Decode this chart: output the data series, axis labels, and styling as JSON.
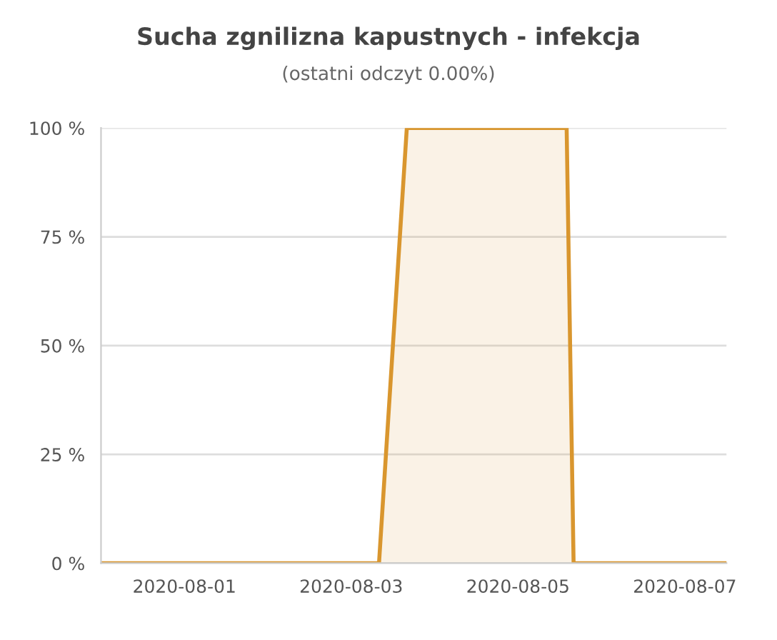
{
  "chart_data": {
    "type": "area",
    "title": "Sucha zgnilizna kapustnych - infekcja",
    "subtitle": "(ostatni odczyt 0.00%)",
    "x": [
      "2020-07-31T00:00",
      "2020-08-03T08:00",
      "2020-08-03T16:00",
      "2020-08-05T14:00",
      "2020-08-05T16:00",
      "2020-08-07T12:00"
    ],
    "series": [
      {
        "color": "#d9962e",
        "values": [
          0,
          0,
          100,
          100,
          0,
          0
        ]
      }
    ],
    "xlim": [
      "2020-07-31T00:00",
      "2020-08-07T12:00"
    ],
    "xticks": [
      "2020-08-01",
      "2020-08-03",
      "2020-08-05",
      "2020-08-07"
    ],
    "ylim": [
      0,
      100
    ],
    "yticks": [
      {
        "value": 0,
        "label": "0 %"
      },
      {
        "value": 25,
        "label": "25 %"
      },
      {
        "value": 50,
        "label": "50 %"
      },
      {
        "value": 75,
        "label": "75 %"
      },
      {
        "value": 100,
        "label": "100 %"
      }
    ],
    "grid": "y",
    "legend": false
  }
}
